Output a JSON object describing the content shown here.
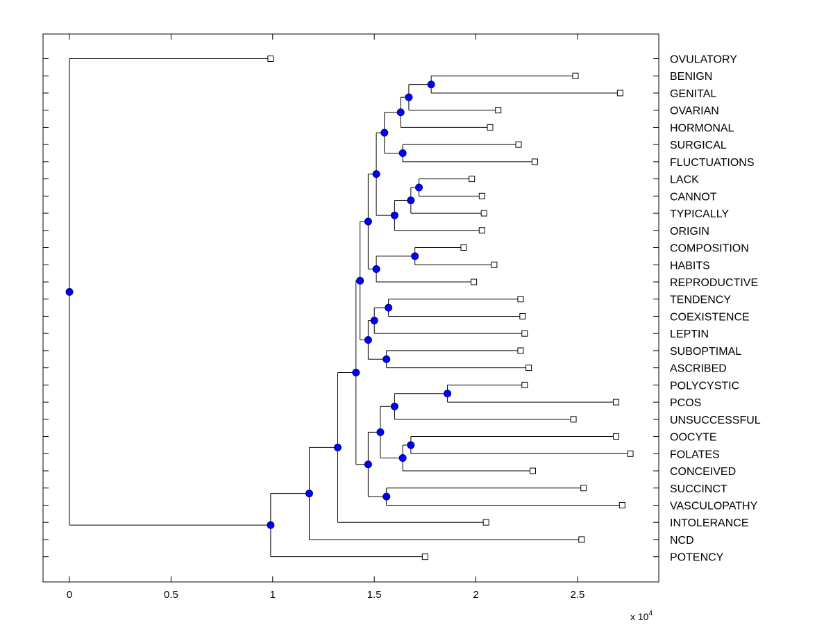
{
  "chart_data": {
    "type": "dendrogram",
    "title": "",
    "xlabel": "",
    "ylabel": "",
    "x_multiplier": {
      "base": "x 10",
      "exponent": "4"
    },
    "xlim": [
      -0.13,
      2.9
    ],
    "x_ticks": [
      {
        "value": 0,
        "label": "0"
      },
      {
        "value": 0.5,
        "label": "0.5"
      },
      {
        "value": 1,
        "label": "1"
      },
      {
        "value": 1.5,
        "label": "1.5"
      },
      {
        "value": 2,
        "label": "2"
      },
      {
        "value": 2.5,
        "label": "2.5"
      }
    ],
    "colors": {
      "axis": "#000000",
      "branch": "#000000",
      "node_fill": "#0000ff",
      "node_stroke": "#00007f",
      "leaf_fill": "#ffffff",
      "leaf_stroke": "#000000"
    },
    "leaves": [
      {
        "label": "OVULATORY",
        "value": 0.99
      },
      {
        "label": "BENIGN",
        "value": 2.49
      },
      {
        "label": "GENITAL",
        "value": 2.71
      },
      {
        "label": "OVARIAN",
        "value": 2.11
      },
      {
        "label": "HORMONAL",
        "value": 2.07
      },
      {
        "label": "SURGICAL",
        "value": 2.21
      },
      {
        "label": "FLUCTUATIONS",
        "value": 2.29
      },
      {
        "label": "LACK",
        "value": 1.98
      },
      {
        "label": "CANNOT",
        "value": 2.03
      },
      {
        "label": "TYPICALLY",
        "value": 2.04
      },
      {
        "label": "ORIGIN",
        "value": 2.03
      },
      {
        "label": "COMPOSITION",
        "value": 1.94
      },
      {
        "label": "HABITS",
        "value": 2.09
      },
      {
        "label": "REPRODUCTIVE",
        "value": 1.99
      },
      {
        "label": "TENDENCY",
        "value": 2.22
      },
      {
        "label": "COEXISTENCE",
        "value": 2.23
      },
      {
        "label": "LEPTIN",
        "value": 2.24
      },
      {
        "label": "SUBOPTIMAL",
        "value": 2.22
      },
      {
        "label": "ASCRIBED",
        "value": 2.26
      },
      {
        "label": "POLYCYSTIC",
        "value": 2.24
      },
      {
        "label": "PCOS",
        "value": 2.69
      },
      {
        "label": "UNSUCCESSFUL",
        "value": 2.48
      },
      {
        "label": "OOCYTE",
        "value": 2.69
      },
      {
        "label": "FOLATES",
        "value": 2.76
      },
      {
        "label": "CONCEIVED",
        "value": 2.28
      },
      {
        "label": "SUCCINCT",
        "value": 2.53
      },
      {
        "label": "VASCULOPATHY",
        "value": 2.72
      },
      {
        "label": "INTOLERANCE",
        "value": 2.05
      },
      {
        "label": "NCD",
        "value": 2.52
      },
      {
        "label": "POTENCY",
        "value": 1.75
      }
    ],
    "nodes": [
      {
        "id": "n1",
        "value": 1.78,
        "children": [
          "BENIGN",
          "GENITAL"
        ]
      },
      {
        "id": "n2",
        "value": 1.67,
        "children": [
          "n1",
          "OVARIAN"
        ]
      },
      {
        "id": "n3",
        "value": 1.63,
        "children": [
          "n2",
          "HORMONAL"
        ]
      },
      {
        "id": "n4",
        "value": 1.64,
        "children": [
          "SURGICAL",
          "FLUCTUATIONS"
        ]
      },
      {
        "id": "n5",
        "value": 1.55,
        "children": [
          "n3",
          "n4"
        ]
      },
      {
        "id": "n6",
        "value": 1.72,
        "children": [
          "LACK",
          "CANNOT"
        ]
      },
      {
        "id": "n7",
        "value": 1.68,
        "children": [
          "n6",
          "TYPICALLY"
        ]
      },
      {
        "id": "n8",
        "value": 1.6,
        "children": [
          "n7",
          "ORIGIN"
        ]
      },
      {
        "id": "n9",
        "value": 1.51,
        "children": [
          "n5",
          "n8"
        ]
      },
      {
        "id": "n10",
        "value": 1.7,
        "children": [
          "COMPOSITION",
          "HABITS"
        ]
      },
      {
        "id": "n11",
        "value": 1.51,
        "children": [
          "n10",
          "REPRODUCTIVE"
        ]
      },
      {
        "id": "n12",
        "value": 1.47,
        "children": [
          "n9",
          "n11"
        ]
      },
      {
        "id": "n13",
        "value": 1.57,
        "children": [
          "TENDENCY",
          "COEXISTENCE"
        ]
      },
      {
        "id": "n14",
        "value": 1.5,
        "children": [
          "n13",
          "LEPTIN"
        ]
      },
      {
        "id": "n15",
        "value": 1.56,
        "children": [
          "SUBOPTIMAL",
          "ASCRIBED"
        ]
      },
      {
        "id": "n16",
        "value": 1.47,
        "children": [
          "n14",
          "n15"
        ]
      },
      {
        "id": "n17",
        "value": 1.43,
        "children": [
          "n12",
          "n16"
        ]
      },
      {
        "id": "n18",
        "value": 1.86,
        "children": [
          "POLYCYSTIC",
          "PCOS"
        ]
      },
      {
        "id": "n19",
        "value": 1.6,
        "children": [
          "n18",
          "UNSUCCESSFUL"
        ]
      },
      {
        "id": "n20",
        "value": 1.68,
        "children": [
          "OOCYTE",
          "FOLATES"
        ]
      },
      {
        "id": "n21",
        "value": 1.64,
        "children": [
          "n20",
          "CONCEIVED"
        ]
      },
      {
        "id": "n22",
        "value": 1.53,
        "children": [
          "n19",
          "n21"
        ]
      },
      {
        "id": "n23",
        "value": 1.56,
        "children": [
          "SUCCINCT",
          "VASCULOPATHY"
        ]
      },
      {
        "id": "n24",
        "value": 1.47,
        "children": [
          "n22",
          "n23"
        ]
      },
      {
        "id": "n25",
        "value": 1.41,
        "children": [
          "n17",
          "n24"
        ]
      },
      {
        "id": "n26",
        "value": 1.32,
        "children": [
          "n25",
          "INTOLERANCE"
        ]
      },
      {
        "id": "n27",
        "value": 1.18,
        "children": [
          "n26",
          "NCD"
        ]
      },
      {
        "id": "n28",
        "value": 0.99,
        "children": [
          "n27",
          "POTENCY"
        ]
      },
      {
        "id": "n29",
        "value": 0.0,
        "children": [
          "OVULATORY",
          "n28"
        ]
      }
    ]
  }
}
